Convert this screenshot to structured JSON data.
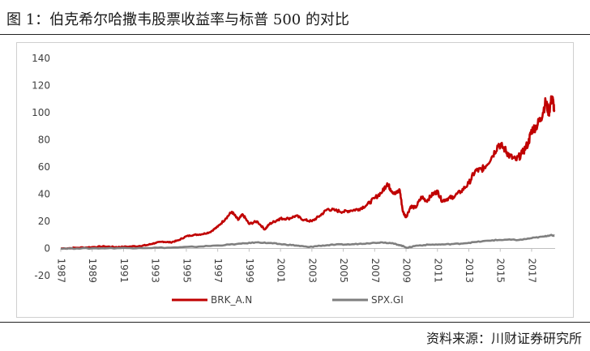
{
  "figure": {
    "title": "图 1：伯克希尔哈撒韦股票收益率与标普 500 的对比",
    "source": "资料来源：川财证券研究所"
  },
  "colors": {
    "brk": "#c00000",
    "spx": "#7f7f7f",
    "zero_line": "#bfbfbf",
    "axis_text": "#404040"
  },
  "chart_data": {
    "type": "line",
    "title": "",
    "xlabel": "",
    "ylabel": "",
    "xlim": [
      1987,
      2018.5
    ],
    "ylim": [
      -20,
      140
    ],
    "grid": false,
    "legend_position": "bottom",
    "x_ticks": [
      "1987",
      "1989",
      "1991",
      "1993",
      "1995",
      "1997",
      "1999",
      "2001",
      "2003",
      "2005",
      "2007",
      "2009",
      "2011",
      "2013",
      "2015",
      "2017"
    ],
    "y_ticks": [
      "140",
      "120",
      "100",
      "80",
      "60",
      "40",
      "20",
      "0",
      "-20"
    ],
    "series": [
      {
        "name": "BRK_A.N",
        "color": "#c00000",
        "points": [
          [
            1987.0,
            0.0
          ],
          [
            1988.0,
            0.5
          ],
          [
            1989.0,
            1.0
          ],
          [
            1989.8,
            1.5
          ],
          [
            1990.5,
            1.0
          ],
          [
            1991.0,
            1.2
          ],
          [
            1992.0,
            1.8
          ],
          [
            1992.5,
            2.5
          ],
          [
            1993.0,
            4.0
          ],
          [
            1993.5,
            5.0
          ],
          [
            1994.0,
            4.5
          ],
          [
            1994.5,
            6.0
          ],
          [
            1995.0,
            9.0
          ],
          [
            1995.5,
            10.0
          ],
          [
            1996.0,
            10.5
          ],
          [
            1996.5,
            12.0
          ],
          [
            1997.0,
            16.0
          ],
          [
            1997.5,
            22.0
          ],
          [
            1997.9,
            27.0
          ],
          [
            1998.3,
            21.0
          ],
          [
            1998.6,
            25.0
          ],
          [
            1999.0,
            18.0
          ],
          [
            1999.5,
            20.0
          ],
          [
            2000.0,
            14.0
          ],
          [
            2000.3,
            18.0
          ],
          [
            2000.8,
            21.0
          ],
          [
            2001.0,
            22.0
          ],
          [
            2001.5,
            22.0
          ],
          [
            2002.0,
            24.0
          ],
          [
            2002.5,
            21.0
          ],
          [
            2003.0,
            20.0
          ],
          [
            2003.5,
            24.0
          ],
          [
            2004.0,
            29.0
          ],
          [
            2004.5,
            28.0
          ],
          [
            2005.0,
            27.0
          ],
          [
            2005.5,
            28.0
          ],
          [
            2006.0,
            29.0
          ],
          [
            2006.5,
            32.0
          ],
          [
            2007.0,
            37.0
          ],
          [
            2007.5,
            42.0
          ],
          [
            2007.8,
            48.0
          ],
          [
            2008.0,
            44.0
          ],
          [
            2008.3,
            40.0
          ],
          [
            2008.6,
            43.0
          ],
          [
            2008.8,
            27.0
          ],
          [
            2009.0,
            23.0
          ],
          [
            2009.3,
            31.0
          ],
          [
            2009.6,
            30.0
          ],
          [
            2010.0,
            38.0
          ],
          [
            2010.3,
            35.0
          ],
          [
            2010.7,
            40.0
          ],
          [
            2011.0,
            42.0
          ],
          [
            2011.3,
            35.0
          ],
          [
            2011.7,
            37.0
          ],
          [
            2012.0,
            38.0
          ],
          [
            2012.5,
            42.0
          ],
          [
            2013.0,
            48.0
          ],
          [
            2013.4,
            57.0
          ],
          [
            2013.8,
            58.0
          ],
          [
            2014.0,
            60.0
          ],
          [
            2014.5,
            68.0
          ],
          [
            2014.9,
            77.0
          ],
          [
            2015.3,
            73.0
          ],
          [
            2015.6,
            68.0
          ],
          [
            2016.0,
            65.0
          ],
          [
            2016.4,
            70.0
          ],
          [
            2016.8,
            78.0
          ],
          [
            2017.0,
            87.0
          ],
          [
            2017.3,
            90.0
          ],
          [
            2017.6,
            96.0
          ],
          [
            2017.9,
            108.0
          ],
          [
            2018.1,
            100.0
          ],
          [
            2018.3,
            112.0
          ],
          [
            2018.45,
            102.0
          ]
        ]
      },
      {
        "name": "SPX.GI",
        "color": "#7f7f7f",
        "points": [
          [
            1987.0,
            0.0
          ],
          [
            1988.0,
            0.0
          ],
          [
            1990.0,
            0.2
          ],
          [
            1992.0,
            0.4
          ],
          [
            1994.0,
            0.6
          ],
          [
            1995.5,
            1.2
          ],
          [
            1997.0,
            2.2
          ],
          [
            1998.5,
            3.5
          ],
          [
            1999.5,
            4.5
          ],
          [
            2000.3,
            4.0
          ],
          [
            2001.0,
            3.2
          ],
          [
            2002.0,
            2.2
          ],
          [
            2002.8,
            1.0
          ],
          [
            2003.5,
            2.0
          ],
          [
            2004.5,
            2.8
          ],
          [
            2005.5,
            3.0
          ],
          [
            2006.5,
            3.8
          ],
          [
            2007.5,
            4.5
          ],
          [
            2008.0,
            4.0
          ],
          [
            2008.6,
            2.5
          ],
          [
            2009.1,
            0.5
          ],
          [
            2009.6,
            2.0
          ],
          [
            2010.5,
            2.8
          ],
          [
            2011.5,
            3.0
          ],
          [
            2012.5,
            3.6
          ],
          [
            2013.5,
            4.8
          ],
          [
            2014.5,
            6.0
          ],
          [
            2015.5,
            6.5
          ],
          [
            2016.2,
            6.2
          ],
          [
            2017.0,
            7.6
          ],
          [
            2017.8,
            8.8
          ],
          [
            2018.2,
            9.8
          ],
          [
            2018.45,
            9.4
          ]
        ]
      }
    ]
  }
}
